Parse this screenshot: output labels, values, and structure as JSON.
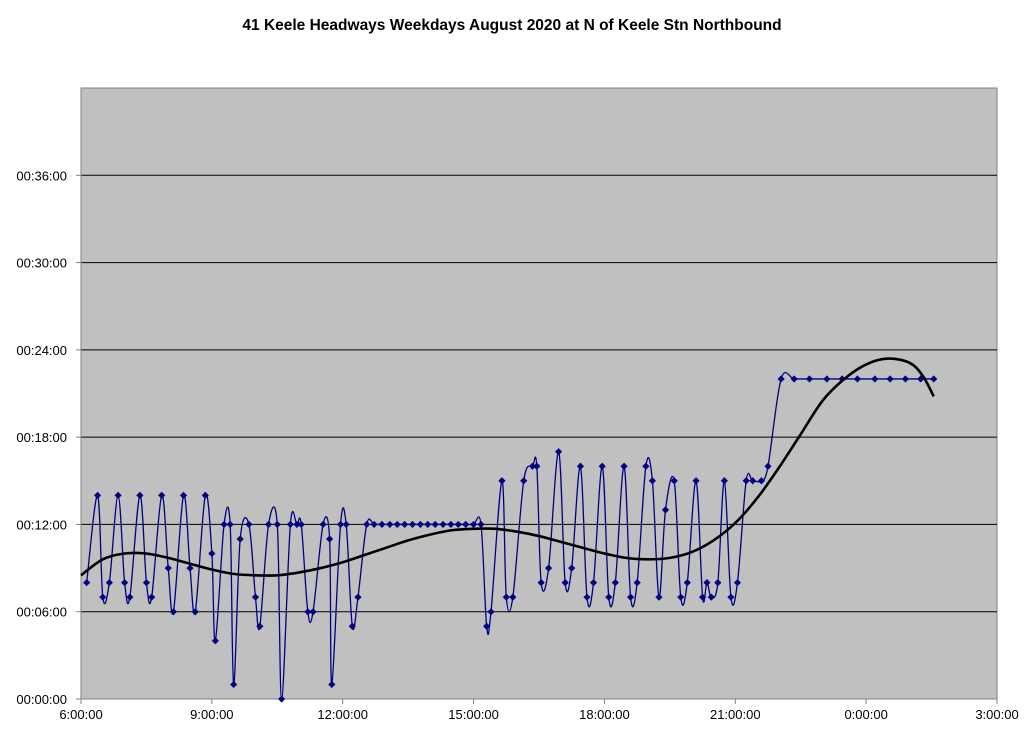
{
  "chart_data": {
    "type": "line",
    "title": "41 Keele Headways Weekdays August 2020 at N of Keele Stn Northbound",
    "xlabel": "",
    "ylabel": "",
    "x_unit": "hours since 6:00",
    "y_unit": "minutes",
    "xlim": [
      0,
      21
    ],
    "ylim": [
      0,
      42
    ],
    "x_ticks": [
      0,
      3,
      6,
      9,
      12,
      15,
      18,
      21
    ],
    "x_tick_labels": [
      "6:00:00",
      "9:00:00",
      "12:00:00",
      "15:00:00",
      "18:00:00",
      "21:00:00",
      "0:00:00",
      "3:00:00"
    ],
    "y_ticks": [
      0,
      6,
      12,
      18,
      24,
      30,
      36
    ],
    "y_tick_labels": [
      "00:00:00",
      "00:06:00",
      "00:12:00",
      "00:18:00",
      "00:24:00",
      "00:30:00",
      "00:36:00"
    ],
    "grid": "horizontal",
    "legend": "none",
    "series": [
      {
        "kind": "headway",
        "color": "#000080",
        "marker": "diamond",
        "points": [
          [
            0.13,
            8
          ],
          [
            0.38,
            14
          ],
          [
            0.5,
            7
          ],
          [
            0.65,
            8
          ],
          [
            0.85,
            14
          ],
          [
            1.0,
            8
          ],
          [
            1.12,
            7
          ],
          [
            1.35,
            14
          ],
          [
            1.5,
            8
          ],
          [
            1.62,
            7
          ],
          [
            1.85,
            14
          ],
          [
            2.0,
            9
          ],
          [
            2.12,
            6
          ],
          [
            2.35,
            14
          ],
          [
            2.5,
            9
          ],
          [
            2.62,
            6
          ],
          [
            2.85,
            14
          ],
          [
            3.0,
            10
          ],
          [
            3.08,
            4
          ],
          [
            3.28,
            12
          ],
          [
            3.42,
            12
          ],
          [
            3.5,
            1
          ],
          [
            3.65,
            11
          ],
          [
            3.85,
            12
          ],
          [
            4.0,
            7
          ],
          [
            4.1,
            5
          ],
          [
            4.3,
            12
          ],
          [
            4.5,
            12
          ],
          [
            4.6,
            0
          ],
          [
            4.8,
            12
          ],
          [
            4.95,
            12
          ],
          [
            5.05,
            12
          ],
          [
            5.2,
            6
          ],
          [
            5.32,
            6
          ],
          [
            5.55,
            12
          ],
          [
            5.7,
            11
          ],
          [
            5.75,
            1
          ],
          [
            5.95,
            12
          ],
          [
            6.08,
            12
          ],
          [
            6.22,
            5
          ],
          [
            6.35,
            7
          ],
          [
            6.55,
            12
          ],
          [
            6.72,
            12
          ],
          [
            6.9,
            12
          ],
          [
            7.08,
            12
          ],
          [
            7.25,
            12
          ],
          [
            7.42,
            12
          ],
          [
            7.6,
            12
          ],
          [
            7.78,
            12
          ],
          [
            7.95,
            12
          ],
          [
            8.12,
            12
          ],
          [
            8.3,
            12
          ],
          [
            8.48,
            12
          ],
          [
            8.65,
            12
          ],
          [
            8.82,
            12
          ],
          [
            9.0,
            12
          ],
          [
            9.17,
            12
          ],
          [
            9.3,
            5
          ],
          [
            9.4,
            6
          ],
          [
            9.65,
            15
          ],
          [
            9.75,
            7
          ],
          [
            9.9,
            7
          ],
          [
            10.15,
            15
          ],
          [
            10.35,
            16
          ],
          [
            10.45,
            16
          ],
          [
            10.55,
            8
          ],
          [
            10.72,
            9
          ],
          [
            10.95,
            17
          ],
          [
            11.1,
            8
          ],
          [
            11.25,
            9
          ],
          [
            11.45,
            16
          ],
          [
            11.6,
            7
          ],
          [
            11.75,
            8
          ],
          [
            11.95,
            16
          ],
          [
            12.1,
            7
          ],
          [
            12.25,
            8
          ],
          [
            12.45,
            16
          ],
          [
            12.6,
            7
          ],
          [
            12.75,
            8
          ],
          [
            12.95,
            16
          ],
          [
            13.1,
            15
          ],
          [
            13.25,
            7
          ],
          [
            13.4,
            13
          ],
          [
            13.6,
            15
          ],
          [
            13.75,
            7
          ],
          [
            13.9,
            8
          ],
          [
            14.1,
            15
          ],
          [
            14.25,
            7
          ],
          [
            14.35,
            8
          ],
          [
            14.45,
            7
          ],
          [
            14.6,
            8
          ],
          [
            14.75,
            15
          ],
          [
            14.9,
            7
          ],
          [
            15.05,
            8
          ],
          [
            15.25,
            15
          ],
          [
            15.4,
            15
          ],
          [
            15.6,
            15
          ],
          [
            15.75,
            16
          ],
          [
            16.05,
            22
          ],
          [
            16.35,
            22
          ],
          [
            16.7,
            22
          ],
          [
            17.1,
            22
          ],
          [
            17.45,
            22
          ],
          [
            17.8,
            22
          ],
          [
            18.2,
            22
          ],
          [
            18.55,
            22
          ],
          [
            18.9,
            22
          ],
          [
            19.25,
            22
          ],
          [
            19.55,
            22
          ]
        ]
      },
      {
        "kind": "trendline",
        "color": "#000000",
        "marker": "none",
        "points": [
          [
            0.0,
            8.5
          ],
          [
            0.5,
            9.6
          ],
          [
            1.0,
            10.0
          ],
          [
            1.5,
            10.0
          ],
          [
            2.0,
            9.7
          ],
          [
            2.5,
            9.3
          ],
          [
            3.0,
            8.9
          ],
          [
            3.5,
            8.6
          ],
          [
            4.0,
            8.5
          ],
          [
            4.5,
            8.5
          ],
          [
            5.0,
            8.7
          ],
          [
            5.5,
            9.0
          ],
          [
            6.0,
            9.4
          ],
          [
            6.5,
            9.9
          ],
          [
            7.0,
            10.4
          ],
          [
            7.5,
            10.9
          ],
          [
            8.0,
            11.3
          ],
          [
            8.5,
            11.6
          ],
          [
            9.0,
            11.7
          ],
          [
            9.5,
            11.7
          ],
          [
            10.0,
            11.5
          ],
          [
            10.5,
            11.2
          ],
          [
            11.0,
            10.8
          ],
          [
            11.5,
            10.4
          ],
          [
            12.0,
            10.0
          ],
          [
            12.5,
            9.7
          ],
          [
            13.0,
            9.6
          ],
          [
            13.5,
            9.7
          ],
          [
            14.0,
            10.1
          ],
          [
            14.5,
            10.9
          ],
          [
            15.0,
            12.1
          ],
          [
            15.5,
            13.8
          ],
          [
            16.0,
            15.9
          ],
          [
            16.5,
            18.2
          ],
          [
            17.0,
            20.5
          ],
          [
            17.5,
            22.0
          ],
          [
            18.0,
            23.0
          ],
          [
            18.5,
            23.4
          ],
          [
            19.0,
            23.1
          ],
          [
            19.3,
            22.2
          ],
          [
            19.55,
            20.8
          ]
        ]
      }
    ]
  }
}
